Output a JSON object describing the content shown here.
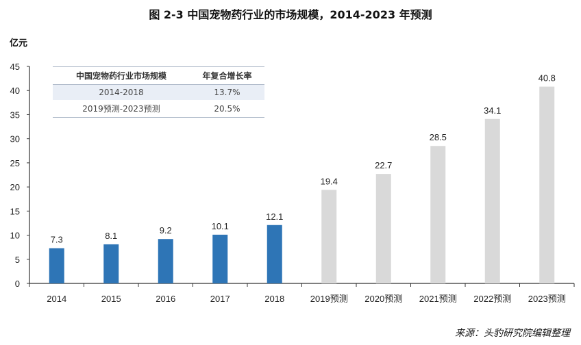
{
  "chart_data": {
    "type": "bar",
    "title": "图 2-3 中国宠物药行业的市场规模，2014-2023 年预测",
    "ylabel": "亿元",
    "xlabel": "",
    "ylim": [
      0,
      45
    ],
    "yticks": [
      0,
      5,
      10,
      15,
      20,
      25,
      30,
      35,
      40,
      45
    ],
    "categories": [
      "2014",
      "2015",
      "2016",
      "2017",
      "2018",
      "2019预测",
      "2020预测",
      "2021预测",
      "2022预测",
      "2023预测"
    ],
    "values": [
      7.3,
      8.1,
      9.2,
      10.1,
      12.1,
      19.4,
      22.7,
      28.5,
      34.1,
      40.8
    ],
    "series_groups": [
      {
        "name": "actual",
        "range": [
          0,
          4
        ],
        "color": "#2e75b6"
      },
      {
        "name": "forecast",
        "range": [
          5,
          9
        ],
        "color": "#d9d9d9"
      }
    ],
    "grid": false,
    "legend": "none"
  },
  "table": {
    "headers": [
      "中国宠物药行业市场规模",
      "年复合增长率"
    ],
    "rows": [
      [
        "2014-2018",
        "13.7%"
      ],
      [
        "2019预测-2023预测",
        "20.5%"
      ]
    ]
  },
  "source": "来源：头豹研究院编辑整理"
}
